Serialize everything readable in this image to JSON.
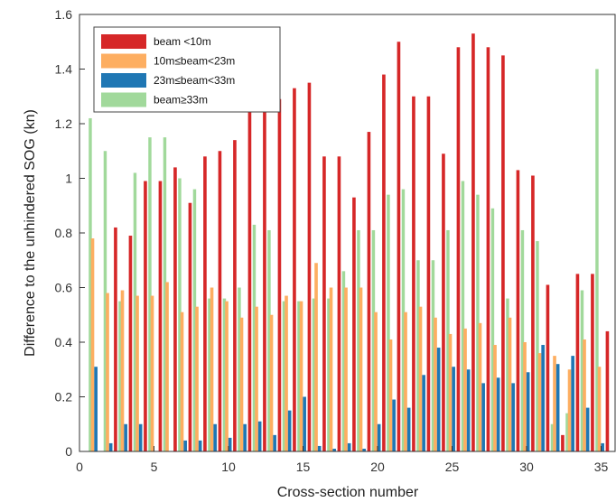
{
  "chart_data": {
    "type": "bar",
    "title": "",
    "xlabel": "Cross-section number",
    "ylabel": "Difference to the unhindered SOG (kn)",
    "xlim": [
      0,
      36
    ],
    "ylim": [
      0,
      1.6
    ],
    "x_ticks": [
      "0",
      "5",
      "10",
      "15",
      "20",
      "25",
      "30",
      "35"
    ],
    "y_ticks": [
      "0",
      "0.2",
      "0.4",
      "0.6",
      "0.8",
      "1",
      "1.2",
      "1.4",
      "1.6"
    ],
    "legend_position": "top-left",
    "grid": false,
    "categories": [
      1,
      2,
      3,
      4,
      5,
      6,
      7,
      8,
      9,
      10,
      11,
      12,
      13,
      14,
      15,
      16,
      17,
      18,
      19,
      20,
      21,
      22,
      23,
      24,
      25,
      26,
      27,
      28,
      29,
      30,
      31,
      32,
      33,
      34,
      35
    ],
    "series": [
      {
        "name": "beam <10m",
        "color": "#d62728",
        "values": [
          0,
          0.82,
          0.79,
          0.99,
          0.99,
          1.04,
          0.91,
          1.08,
          1.1,
          1.14,
          1.27,
          1.27,
          1.29,
          1.33,
          1.35,
          1.08,
          1.08,
          0.93,
          1.17,
          1.38,
          1.5,
          1.3,
          1.3,
          1.09,
          1.48,
          1.53,
          1.48,
          1.45,
          1.03,
          1.01,
          0.61,
          0.06,
          0.65,
          0.65,
          0.44
        ]
      },
      {
        "name": "10m≤beam<23m",
        "color": "#fdae61",
        "values": [
          0.78,
          0.58,
          0.59,
          0.57,
          0.57,
          0.62,
          0.51,
          0.53,
          0.6,
          0.55,
          0.49,
          0.53,
          0.5,
          0.57,
          0.55,
          0.69,
          0.6,
          0.6,
          0.6,
          0.51,
          0.41,
          0.51,
          0.53,
          0.49,
          0.43,
          0.45,
          0.47,
          0.39,
          0.49,
          0.4,
          0.36,
          0.35,
          0.3,
          0.41,
          0.31
        ]
      },
      {
        "name": "23m≤beam<33m",
        "color": "#1f77b4",
        "values": [
          0.31,
          0.03,
          0.1,
          0.1,
          0,
          0,
          0.04,
          0.04,
          0.1,
          0.05,
          0.1,
          0.11,
          0.06,
          0.15,
          0.2,
          0.02,
          0.01,
          0.03,
          0.01,
          0.1,
          0.19,
          0.16,
          0.28,
          0.38,
          0.31,
          0.3,
          0.25,
          0.27,
          0.25,
          0.29,
          0.39,
          0.32,
          0.35,
          0.16,
          0.03
        ]
      },
      {
        "name": "beam≥33m",
        "color": "#a1d99b",
        "values": [
          1.22,
          1.1,
          0.55,
          1.02,
          1.15,
          1.15,
          1.0,
          0.96,
          0.56,
          0.56,
          0.6,
          0.83,
          0.81,
          0.55,
          0.55,
          0.56,
          0.56,
          0.66,
          0.81,
          0.81,
          0.94,
          0.96,
          0.7,
          0.7,
          0.81,
          0.99,
          0.94,
          0.89,
          0.56,
          0.81,
          0.77,
          0.1,
          0.14,
          0.59,
          1.4
        ]
      }
    ]
  }
}
